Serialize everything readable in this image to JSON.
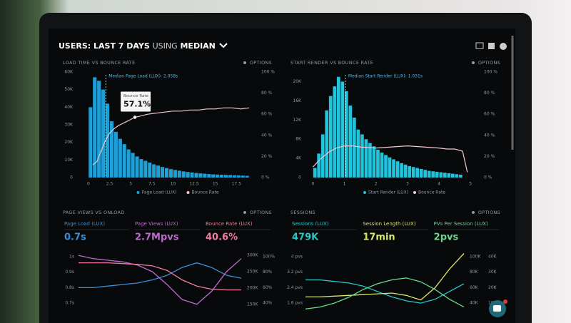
{
  "header": {
    "users": "USERS:",
    "period": "LAST 7 DAYS",
    "using": "USING",
    "stat": "MEDIAN"
  },
  "chart_data": [
    {
      "type": "histogram",
      "title": "LOAD TIME VS BOUNCE RATE",
      "options": "OPTIONS",
      "name": "Page Load (LUX)",
      "color": "#1e9fd6",
      "bins": [
        0,
        0.5,
        1,
        1.5,
        2,
        2.5,
        3,
        3.5,
        4,
        4.5,
        5,
        5.5,
        6,
        6.5,
        7,
        7.5,
        8,
        8.5,
        9,
        9.5,
        10,
        10.5,
        11,
        11.5,
        12,
        12.5,
        13,
        13.5,
        14,
        14.5,
        15,
        15.5,
        16,
        16.5,
        17,
        17.5,
        18,
        18.5,
        19
      ],
      "values": [
        40000,
        57000,
        55000,
        50000,
        42000,
        32000,
        26000,
        22000,
        19000,
        16000,
        14000,
        12000,
        10500,
        9500,
        8500,
        7500,
        6800,
        6000,
        5400,
        4800,
        4300,
        3900,
        3500,
        3200,
        2900,
        2600,
        2400,
        2200,
        2000,
        1800,
        1700,
        1600,
        1500,
        1400,
        1300,
        1200,
        1100,
        1000
      ],
      "line": {
        "name": "Bounce Rate",
        "color": "#f2c9d2",
        "axis": "y2",
        "x": [
          0.5,
          1,
          1.5,
          2,
          2.5,
          3,
          3.5,
          4,
          4.5,
          5,
          5.5,
          6,
          7,
          8,
          9,
          10,
          11,
          12,
          13,
          14,
          15,
          16,
          17,
          18,
          19
        ],
        "values": [
          12,
          15,
          25,
          35,
          42,
          46,
          49,
          51,
          53,
          55,
          57.1,
          58,
          60,
          61,
          62,
          63,
          63,
          64,
          64,
          65,
          65,
          66,
          66,
          65,
          66
        ]
      },
      "median": 2.058,
      "median_label": "Median Page Load (LUX): 2.058s",
      "tooltip": {
        "title": "Bounce Rate",
        "value": 57.1,
        "label": "57.1%"
      },
      "xlim": [
        -1,
        19.5
      ],
      "xticks": [
        0,
        2.5,
        5,
        7.5,
        10,
        12.5,
        15,
        17.5
      ],
      "ylim": [
        0,
        60000
      ],
      "yticks": [
        0,
        {
          "value": 10000,
          "label": "10K"
        },
        {
          "value": 20000,
          "label": "20K"
        },
        {
          "value": 30000,
          "label": "30K"
        },
        {
          "value": 40000,
          "label": "40K"
        },
        {
          "value": 50000,
          "label": "50K"
        },
        {
          "value": 60000,
          "label": "60K"
        }
      ],
      "y2lim": [
        0,
        100
      ],
      "y2ticks": [
        {
          "value": 0,
          "label": "0 %"
        },
        {
          "value": 20,
          "label": "20 %"
        },
        {
          "value": 40,
          "label": "40 %"
        },
        {
          "value": 60,
          "label": "60 %"
        },
        {
          "value": 80,
          "label": "80 %"
        },
        {
          "value": 100,
          "label": "100 %"
        }
      ]
    },
    {
      "type": "histogram",
      "title": "START RENDER VS BOUNCE RATE",
      "options": "OPTIONS",
      "name": "Start Render (LUX)",
      "color": "#22c4dc",
      "bins": [
        0,
        0.125,
        0.25,
        0.375,
        0.5,
        0.625,
        0.75,
        0.875,
        1,
        1.125,
        1.25,
        1.375,
        1.5,
        1.625,
        1.75,
        1.875,
        2,
        2.125,
        2.25,
        2.375,
        2.5,
        2.625,
        2.75,
        2.875,
        3,
        3.125,
        3.25,
        3.375,
        3.5,
        3.625,
        3.75,
        3.875,
        4,
        4.125,
        4.25,
        4.375,
        4.5,
        4.625,
        4.75
      ],
      "values": [
        2000,
        5000,
        9000,
        14000,
        17000,
        19000,
        21000,
        20000,
        18000,
        15000,
        12500,
        10000,
        9000,
        8000,
        7200,
        6500,
        5800,
        5200,
        4700,
        4200,
        3800,
        3400,
        3000,
        2700,
        2400,
        2200,
        2000,
        1800,
        1600,
        1400,
        1300,
        1200,
        1100,
        1000,
        900,
        800,
        700,
        600
      ],
      "line": {
        "name": "Bounce Rate",
        "color": "#f2c9d2",
        "axis": "y2",
        "x": [
          0,
          0.25,
          0.5,
          0.75,
          1,
          1.25,
          1.5,
          2,
          2.5,
          3,
          3.5,
          4,
          4.25,
          4.5,
          4.75,
          4.9
        ],
        "values": [
          10,
          18,
          24,
          28,
          30,
          30,
          29,
          28,
          29,
          30,
          29,
          28,
          27,
          27,
          25,
          5
        ]
      },
      "median": 1.031,
      "median_label": "Median Start Render (LUX): 1.031s",
      "xlim": [
        -0.1,
        5.2
      ],
      "xticks": [
        0,
        1,
        2,
        3,
        4,
        5
      ],
      "ylim": [
        0,
        22000
      ],
      "yticks": [
        0,
        {
          "value": 4000,
          "label": "4K"
        },
        {
          "value": 8000,
          "label": "8K"
        },
        {
          "value": 12000,
          "label": "12K"
        },
        {
          "value": 16000,
          "label": "16K"
        },
        {
          "value": 20000,
          "label": "20K"
        }
      ],
      "y2lim": [
        0,
        100
      ],
      "y2ticks": [
        {
          "value": 0,
          "label": "0 %"
        },
        {
          "value": 20,
          "label": "20 %"
        },
        {
          "value": 40,
          "label": "40 %"
        },
        {
          "value": 60,
          "label": "60 %"
        },
        {
          "value": 80,
          "label": "80 %"
        },
        {
          "value": 100,
          "label": "100 %"
        }
      ]
    },
    {
      "type": "line",
      "title": "PAGE VIEWS VS ONLOAD",
      "options": "OPTIONS",
      "series": [
        {
          "name": "Page Load (LUX)",
          "metric": "0.7s",
          "color": "#3a8fd8",
          "axis": "y",
          "values": [
            0.8,
            0.8,
            0.81,
            0.82,
            0.83,
            0.85,
            0.88,
            0.93,
            0.96,
            0.93,
            0.88,
            0.86
          ]
        },
        {
          "name": "Page Views (LUX)",
          "metric": "2.7Mpvs",
          "color": "#c06ad0",
          "axis": "y2",
          "values": [
            300000,
            290000,
            285000,
            280000,
            270000,
            250000,
            210000,
            165000,
            150000,
            190000,
            250000,
            290000
          ]
        },
        {
          "name": "Bounce Rate (LUX)",
          "metric": "40.6%",
          "color": "#f07aa0",
          "axis": "y3",
          "values": [
            92,
            92,
            92,
            91,
            90,
            88,
            82,
            70,
            62,
            58,
            57,
            57
          ]
        }
      ],
      "ylim": [
        0.65,
        1.05
      ],
      "yticks": [
        {
          "value": 1,
          "label": "1s"
        },
        {
          "value": 0.9,
          "label": "0.9s"
        },
        {
          "value": 0.8,
          "label": "0.8s"
        },
        {
          "value": 0.7,
          "label": "0.7s"
        }
      ],
      "y2lim": [
        130000,
        320000
      ],
      "y2ticks": [
        {
          "value": 300000,
          "label": "300K"
        },
        {
          "value": 250000,
          "label": "250K"
        },
        {
          "value": 200000,
          "label": "200K"
        },
        {
          "value": 150000,
          "label": "150K"
        }
      ],
      "y3lim": [
        30,
        110
      ],
      "y3ticks": [
        {
          "value": 100,
          "label": "100%"
        },
        {
          "value": 80,
          "label": "80%"
        },
        {
          "value": 60,
          "label": "60%"
        },
        {
          "value": 40,
          "label": "40%"
        }
      ]
    },
    {
      "type": "line",
      "title": "SESSIONS",
      "options": "OPTIONS",
      "series": [
        {
          "name": "Sessions (LUX)",
          "metric": "479K",
          "color": "#2ac8c8",
          "axis": "y2",
          "values": [
            70000,
            70000,
            68000,
            66000,
            62000,
            55000,
            48000,
            43000,
            40000,
            45000,
            55000,
            65000
          ]
        },
        {
          "name": "Session Length (LUX)",
          "metric": "17min",
          "color": "#d8e86a",
          "axis": "y3",
          "values": [
            14000,
            14000,
            14500,
            15000,
            15500,
            16000,
            16500,
            15000,
            12000,
            20000,
            32000,
            42000
          ]
        },
        {
          "name": "PVs Per Session (LUX)",
          "metric": "2pvs",
          "color": "#6ad88a",
          "axis": "y",
          "values": [
            1.3,
            1.4,
            1.6,
            1.9,
            2.3,
            2.6,
            2.8,
            2.9,
            2.7,
            2.3,
            1.8,
            1.4
          ]
        }
      ],
      "ylim": [
        1.2,
        4.4
      ],
      "yticks": [
        {
          "value": 4,
          "label": "4 pvs"
        },
        {
          "value": 3.2,
          "label": "3.2 pvs"
        },
        {
          "value": 2.4,
          "label": "2.4 pvs"
        },
        {
          "value": 1.6,
          "label": "1.6 pvs"
        }
      ],
      "y2lim": [
        30000,
        110000
      ],
      "y2ticks": [
        {
          "value": 100000,
          "label": "100K"
        },
        {
          "value": 80000,
          "label": "80K"
        },
        {
          "value": 60000,
          "label": "60K"
        },
        {
          "value": 40000,
          "label": "40K"
        }
      ],
      "y3lim": [
        5000,
        45000
      ],
      "y3ticks": [
        {
          "value": 40000,
          "label": "40K"
        },
        {
          "value": 30000,
          "label": "30K"
        },
        {
          "value": 20000,
          "label": "20K"
        },
        {
          "value": 10000,
          "label": "10K"
        }
      ]
    }
  ]
}
